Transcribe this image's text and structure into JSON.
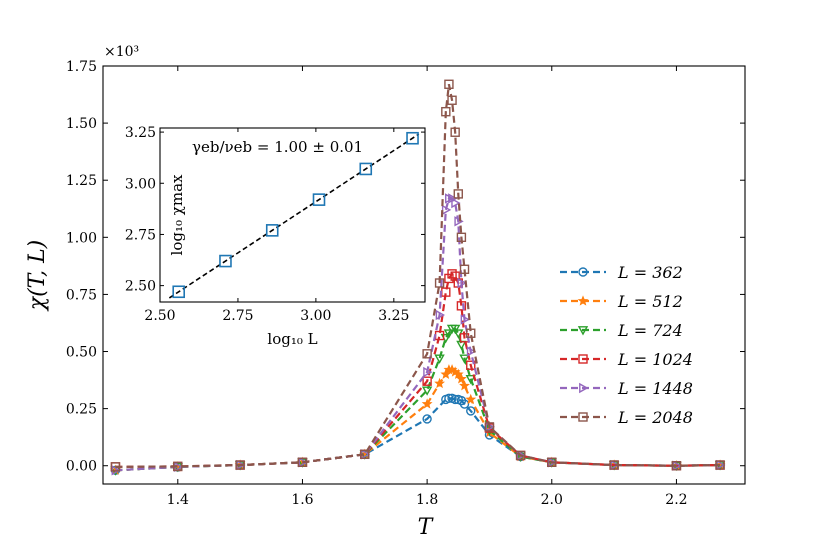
{
  "chart_data": {
    "type": "line",
    "main": {
      "xlabel": "T",
      "ylabel": "χ(T, L)",
      "multiplier": "×10³",
      "xlim": [
        1.28,
        2.31
      ],
      "ylim": [
        -0.08,
        1.75
      ],
      "xticks": [
        1.4,
        1.6,
        1.8,
        2.0,
        2.2
      ],
      "xtick_labels": [
        "1.4",
        "1.6",
        "1.8",
        "2.0",
        "2.2"
      ],
      "yticks": [
        0.0,
        0.25,
        0.5,
        0.75,
        1.0,
        1.25,
        1.5,
        1.75
      ],
      "ytick_labels": [
        "0.00",
        "0.25",
        "0.50",
        "0.75",
        "1.00",
        "1.25",
        "1.50",
        "1.75"
      ],
      "series": [
        {
          "name": "L = 362",
          "legend_value": "362",
          "color": "#1f77b4",
          "marker": "circle",
          "points": [
            [
              1.3,
              -0.02
            ],
            [
              1.4,
              -0.005
            ],
            [
              1.5,
              0.003
            ],
            [
              1.6,
              0.015
            ],
            [
              1.7,
              0.05
            ],
            [
              1.8,
              0.205
            ],
            [
              1.83,
              0.29
            ],
            [
              1.835,
              0.295
            ],
            [
              1.84,
              0.295
            ],
            [
              1.845,
              0.29
            ],
            [
              1.85,
              0.29
            ],
            [
              1.855,
              0.285
            ],
            [
              1.86,
              0.27
            ],
            [
              1.87,
              0.24
            ],
            [
              1.9,
              0.135
            ],
            [
              1.95,
              0.04
            ],
            [
              2.0,
              0.015
            ],
            [
              2.1,
              0.003
            ],
            [
              2.2,
              0.0
            ],
            [
              2.27,
              0.003
            ]
          ]
        },
        {
          "name": "L = 512",
          "legend_value": "512",
          "color": "#ff7f0e",
          "marker": "star",
          "points": [
            [
              1.3,
              -0.02
            ],
            [
              1.4,
              -0.005
            ],
            [
              1.5,
              0.003
            ],
            [
              1.6,
              0.015
            ],
            [
              1.7,
              0.05
            ],
            [
              1.8,
              0.27
            ],
            [
              1.82,
              0.36
            ],
            [
              1.83,
              0.4
            ],
            [
              1.835,
              0.42
            ],
            [
              1.84,
              0.42
            ],
            [
              1.845,
              0.41
            ],
            [
              1.85,
              0.4
            ],
            [
              1.855,
              0.38
            ],
            [
              1.86,
              0.35
            ],
            [
              1.87,
              0.29
            ],
            [
              1.9,
              0.145
            ],
            [
              1.95,
              0.04
            ],
            [
              2.0,
              0.015
            ],
            [
              2.1,
              0.003
            ],
            [
              2.2,
              0.0
            ],
            [
              2.27,
              0.003
            ]
          ]
        },
        {
          "name": "L = 724",
          "legend_value": "724",
          "color": "#2ca02c",
          "marker": "triangle-down",
          "points": [
            [
              1.3,
              -0.02
            ],
            [
              1.4,
              -0.005
            ],
            [
              1.5,
              0.003
            ],
            [
              1.6,
              0.015
            ],
            [
              1.7,
              0.05
            ],
            [
              1.8,
              0.33
            ],
            [
              1.82,
              0.47
            ],
            [
              1.83,
              0.56
            ],
            [
              1.835,
              0.58
            ],
            [
              1.84,
              0.6
            ],
            [
              1.845,
              0.6
            ],
            [
              1.85,
              0.58
            ],
            [
              1.855,
              0.53
            ],
            [
              1.86,
              0.47
            ],
            [
              1.87,
              0.38
            ],
            [
              1.9,
              0.155
            ],
            [
              1.95,
              0.04
            ],
            [
              2.0,
              0.015
            ],
            [
              2.1,
              0.003
            ],
            [
              2.2,
              0.0
            ],
            [
              2.27,
              0.003
            ]
          ]
        },
        {
          "name": "L = 1024",
          "legend_value": "1024",
          "color": "#d62728",
          "marker": "square",
          "points": [
            [
              1.3,
              -0.005
            ],
            [
              1.4,
              -0.003
            ],
            [
              1.5,
              0.003
            ],
            [
              1.6,
              0.015
            ],
            [
              1.7,
              0.05
            ],
            [
              1.8,
              0.37
            ],
            [
              1.82,
              0.57
            ],
            [
              1.83,
              0.76
            ],
            [
              1.835,
              0.82
            ],
            [
              1.84,
              0.84
            ],
            [
              1.845,
              0.83
            ],
            [
              1.85,
              0.8
            ],
            [
              1.855,
              0.7
            ],
            [
              1.86,
              0.56
            ],
            [
              1.87,
              0.44
            ],
            [
              1.9,
              0.165
            ],
            [
              1.95,
              0.045
            ],
            [
              2.0,
              0.015
            ],
            [
              2.1,
              0.003
            ],
            [
              2.2,
              0.0
            ],
            [
              2.27,
              0.003
            ]
          ]
        },
        {
          "name": "L = 1448",
          "legend_value": "1448",
          "color": "#9467bd",
          "marker": "triangle-right",
          "points": [
            [
              1.3,
              -0.02
            ],
            [
              1.4,
              -0.005
            ],
            [
              1.5,
              0.003
            ],
            [
              1.6,
              0.015
            ],
            [
              1.7,
              0.05
            ],
            [
              1.8,
              0.41
            ],
            [
              1.82,
              0.66
            ],
            [
              1.83,
              1.12
            ],
            [
              1.835,
              1.17
            ],
            [
              1.84,
              1.17
            ],
            [
              1.845,
              1.15
            ],
            [
              1.85,
              1.07
            ],
            [
              1.855,
              0.8
            ],
            [
              1.86,
              0.64
            ],
            [
              1.87,
              0.5
            ],
            [
              1.9,
              0.17
            ],
            [
              1.95,
              0.045
            ],
            [
              2.0,
              0.015
            ],
            [
              2.1,
              0.003
            ],
            [
              2.2,
              0.0
            ],
            [
              2.27,
              0.003
            ]
          ]
        },
        {
          "name": "L = 2048",
          "legend_value": "2048",
          "color": "#8c564b",
          "marker": "square",
          "points": [
            [
              1.3,
              -0.005
            ],
            [
              1.4,
              -0.003
            ],
            [
              1.5,
              0.003
            ],
            [
              1.6,
              0.015
            ],
            [
              1.7,
              0.05
            ],
            [
              1.8,
              0.49
            ],
            [
              1.82,
              0.8
            ],
            [
              1.83,
              1.55
            ],
            [
              1.835,
              1.67
            ],
            [
              1.84,
              1.6
            ],
            [
              1.845,
              1.46
            ],
            [
              1.85,
              1.19
            ],
            [
              1.855,
              1.0
            ],
            [
              1.86,
              0.86
            ],
            [
              1.87,
              0.58
            ],
            [
              1.9,
              0.17
            ],
            [
              1.95,
              0.045
            ],
            [
              2.0,
              0.015
            ],
            [
              2.1,
              0.003
            ],
            [
              2.2,
              0.0
            ],
            [
              2.27,
              0.003
            ]
          ]
        }
      ]
    },
    "inset": {
      "type": "scatter",
      "xlabel": "log₁₀ L",
      "ylabel": "log₁₀ χmax",
      "annotation": "γeb/νeb = 1.00 ± 0.01",
      "xlim": [
        2.5,
        3.35
      ],
      "ylim": [
        2.42,
        3.27
      ],
      "xticks": [
        2.5,
        2.75,
        3.0,
        3.25
      ],
      "xtick_labels": [
        "2.50",
        "2.75",
        "3.00",
        "3.25"
      ],
      "yticks": [
        2.5,
        2.75,
        3.0,
        3.25
      ],
      "ytick_labels": [
        "2.50",
        "2.75",
        "3.00",
        "3.25"
      ],
      "points": [
        [
          2.56,
          2.47
        ],
        [
          2.71,
          2.62
        ],
        [
          2.86,
          2.77
        ],
        [
          3.01,
          2.92
        ],
        [
          3.16,
          3.07
        ],
        [
          3.31,
          3.22
        ]
      ],
      "fit_line": [
        [
          2.53,
          2.44
        ],
        [
          3.33,
          3.24
        ]
      ],
      "marker_color": "#1f77b4"
    }
  }
}
